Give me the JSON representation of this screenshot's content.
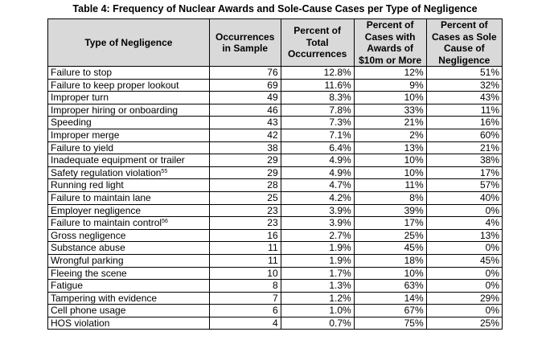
{
  "caption": "Table 4: Frequency of Nuclear Awards and Sole-Cause Cases per Type of Negligence",
  "headers": {
    "type": "Type of Negligence",
    "occurrences": "Occurrences in Sample",
    "pct_total": "Percent of Total Occurrences",
    "pct_awards": "Percent of Cases with Awards of $10m or More",
    "pct_sole": "Percent of Cases as Sole Cause of Negligence"
  },
  "rows": [
    {
      "type": "Failure to stop",
      "footnote": "",
      "occurrences": "76",
      "pct_total": "12.8%",
      "pct_awards": "12%",
      "pct_sole": "51%"
    },
    {
      "type": "Failure to keep proper lookout",
      "footnote": "",
      "occurrences": "69",
      "pct_total": "11.6%",
      "pct_awards": "9%",
      "pct_sole": "32%"
    },
    {
      "type": "Improper turn",
      "footnote": "",
      "occurrences": "49",
      "pct_total": "8.3%",
      "pct_awards": "10%",
      "pct_sole": "43%"
    },
    {
      "type": "Improper hiring or onboarding",
      "footnote": "",
      "occurrences": "46",
      "pct_total": "7.8%",
      "pct_awards": "33%",
      "pct_sole": "11%"
    },
    {
      "type": "Speeding",
      "footnote": "",
      "occurrences": "43",
      "pct_total": "7.3%",
      "pct_awards": "21%",
      "pct_sole": "16%"
    },
    {
      "type": "Improper merge",
      "footnote": "",
      "occurrences": "42",
      "pct_total": "7.1%",
      "pct_awards": "2%",
      "pct_sole": "60%"
    },
    {
      "type": "Failure to yield",
      "footnote": "",
      "occurrences": "38",
      "pct_total": "6.4%",
      "pct_awards": "13%",
      "pct_sole": "21%"
    },
    {
      "type": "Inadequate equipment or trailer",
      "footnote": "",
      "occurrences": "29",
      "pct_total": "4.9%",
      "pct_awards": "10%",
      "pct_sole": "38%"
    },
    {
      "type": "Safety regulation violation",
      "footnote": "55",
      "occurrences": "29",
      "pct_total": "4.9%",
      "pct_awards": "10%",
      "pct_sole": "17%"
    },
    {
      "type": "Running red light",
      "footnote": "",
      "occurrences": "28",
      "pct_total": "4.7%",
      "pct_awards": "11%",
      "pct_sole": "57%"
    },
    {
      "type": "Failure to maintain lane",
      "footnote": "",
      "occurrences": "25",
      "pct_total": "4.2%",
      "pct_awards": "8%",
      "pct_sole": "40%"
    },
    {
      "type": "Employer negligence",
      "footnote": "",
      "occurrences": "23",
      "pct_total": "3.9%",
      "pct_awards": "39%",
      "pct_sole": "0%"
    },
    {
      "type": "Failure to maintain control",
      "footnote": "56",
      "occurrences": "23",
      "pct_total": "3.9%",
      "pct_awards": "17%",
      "pct_sole": "4%"
    },
    {
      "type": "Gross negligence",
      "footnote": "",
      "occurrences": "16",
      "pct_total": "2.7%",
      "pct_awards": "25%",
      "pct_sole": "13%"
    },
    {
      "type": "Substance abuse",
      "footnote": "",
      "occurrences": "11",
      "pct_total": "1.9%",
      "pct_awards": "45%",
      "pct_sole": "0%"
    },
    {
      "type": "Wrongful parking",
      "footnote": "",
      "occurrences": "11",
      "pct_total": "1.9%",
      "pct_awards": "18%",
      "pct_sole": "45%"
    },
    {
      "type": "Fleeing the scene",
      "footnote": "",
      "occurrences": "10",
      "pct_total": "1.7%",
      "pct_awards": "10%",
      "pct_sole": "0%"
    },
    {
      "type": "Fatigue",
      "footnote": "",
      "occurrences": "8",
      "pct_total": "1.3%",
      "pct_awards": "63%",
      "pct_sole": "0%"
    },
    {
      "type": "Tampering with evidence",
      "footnote": "",
      "occurrences": "7",
      "pct_total": "1.2%",
      "pct_awards": "14%",
      "pct_sole": "29%"
    },
    {
      "type": "Cell phone usage",
      "footnote": "",
      "occurrences": "6",
      "pct_total": "1.0%",
      "pct_awards": "67%",
      "pct_sole": "0%"
    },
    {
      "type": "HOS violation",
      "footnote": "",
      "occurrences": "4",
      "pct_total": "0.7%",
      "pct_awards": "75%",
      "pct_sole": "25%"
    }
  ]
}
